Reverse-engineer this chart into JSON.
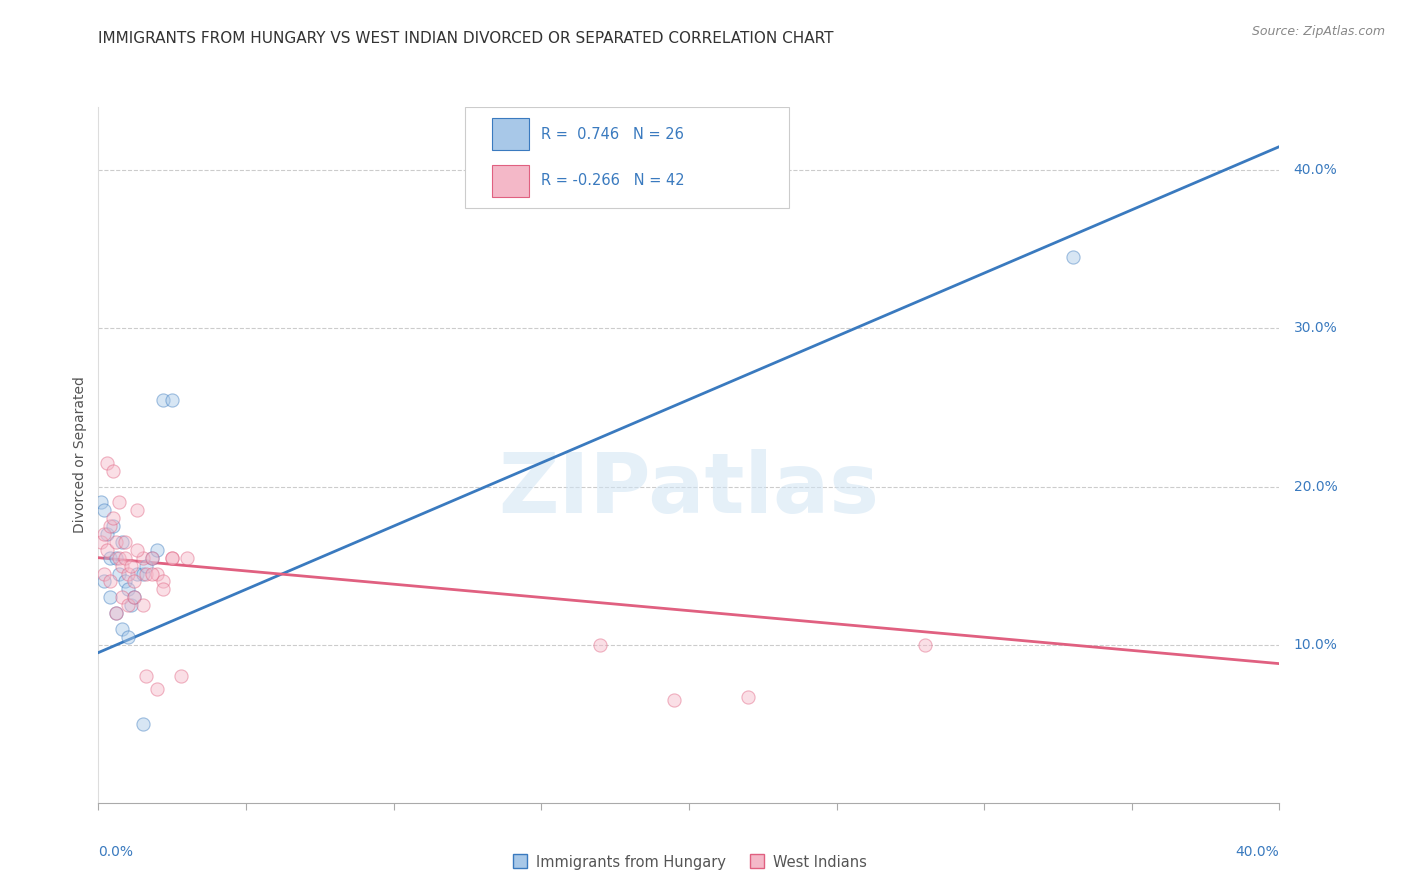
{
  "title": "IMMIGRANTS FROM HUNGARY VS WEST INDIAN DIVORCED OR SEPARATED CORRELATION CHART",
  "source": "Source: ZipAtlas.com",
  "watermark": "ZIPatlas",
  "ylabel_left": "Divorced or Separated",
  "right_ytick_labels": [
    "10.0%",
    "20.0%",
    "30.0%",
    "40.0%"
  ],
  "right_ytick_values": [
    0.1,
    0.2,
    0.3,
    0.4
  ],
  "xlim": [
    0.0,
    0.4
  ],
  "ylim": [
    0.0,
    0.44
  ],
  "legend_blue_r": "0.746",
  "legend_blue_n": "26",
  "legend_pink_r": "-0.266",
  "legend_pink_n": "42",
  "blue_color": "#a8c8e8",
  "pink_color": "#f4b8c8",
  "blue_line_color": "#3a7abf",
  "pink_line_color": "#e06080",
  "blue_scatter_x": [
    0.001,
    0.002,
    0.003,
    0.004,
    0.005,
    0.006,
    0.007,
    0.008,
    0.009,
    0.01,
    0.011,
    0.012,
    0.013,
    0.015,
    0.016,
    0.018,
    0.02,
    0.022,
    0.025,
    0.002,
    0.004,
    0.006,
    0.008,
    0.01,
    0.33,
    0.015
  ],
  "blue_scatter_y": [
    0.19,
    0.185,
    0.17,
    0.155,
    0.175,
    0.155,
    0.145,
    0.165,
    0.14,
    0.135,
    0.125,
    0.13,
    0.145,
    0.145,
    0.15,
    0.155,
    0.16,
    0.255,
    0.255,
    0.14,
    0.13,
    0.12,
    0.11,
    0.105,
    0.345,
    0.05
  ],
  "pink_scatter_x": [
    0.001,
    0.002,
    0.003,
    0.004,
    0.005,
    0.006,
    0.007,
    0.008,
    0.009,
    0.01,
    0.011,
    0.012,
    0.013,
    0.015,
    0.016,
    0.018,
    0.02,
    0.022,
    0.025,
    0.028,
    0.002,
    0.004,
    0.006,
    0.008,
    0.01,
    0.012,
    0.015,
    0.018,
    0.022,
    0.025,
    0.03,
    0.003,
    0.005,
    0.007,
    0.009,
    0.013,
    0.016,
    0.02,
    0.28,
    0.17,
    0.195,
    0.22
  ],
  "pink_scatter_y": [
    0.165,
    0.17,
    0.16,
    0.175,
    0.18,
    0.165,
    0.155,
    0.15,
    0.155,
    0.145,
    0.15,
    0.14,
    0.185,
    0.155,
    0.145,
    0.155,
    0.145,
    0.14,
    0.155,
    0.08,
    0.145,
    0.14,
    0.12,
    0.13,
    0.125,
    0.13,
    0.125,
    0.145,
    0.135,
    0.155,
    0.155,
    0.215,
    0.21,
    0.19,
    0.165,
    0.16,
    0.08,
    0.072,
    0.1,
    0.1,
    0.065,
    0.067
  ],
  "blue_line_x": [
    0.0,
    0.4
  ],
  "blue_line_y": [
    0.095,
    0.415
  ],
  "pink_line_x": [
    0.0,
    0.4
  ],
  "pink_line_y": [
    0.155,
    0.088
  ],
  "legend_label_blue": "Immigrants from Hungary",
  "legend_label_pink": "West Indians",
  "background_color": "#ffffff",
  "grid_color": "#cccccc",
  "title_fontsize": 11,
  "source_fontsize": 9,
  "marker_size": 90,
  "marker_alpha": 0.45
}
